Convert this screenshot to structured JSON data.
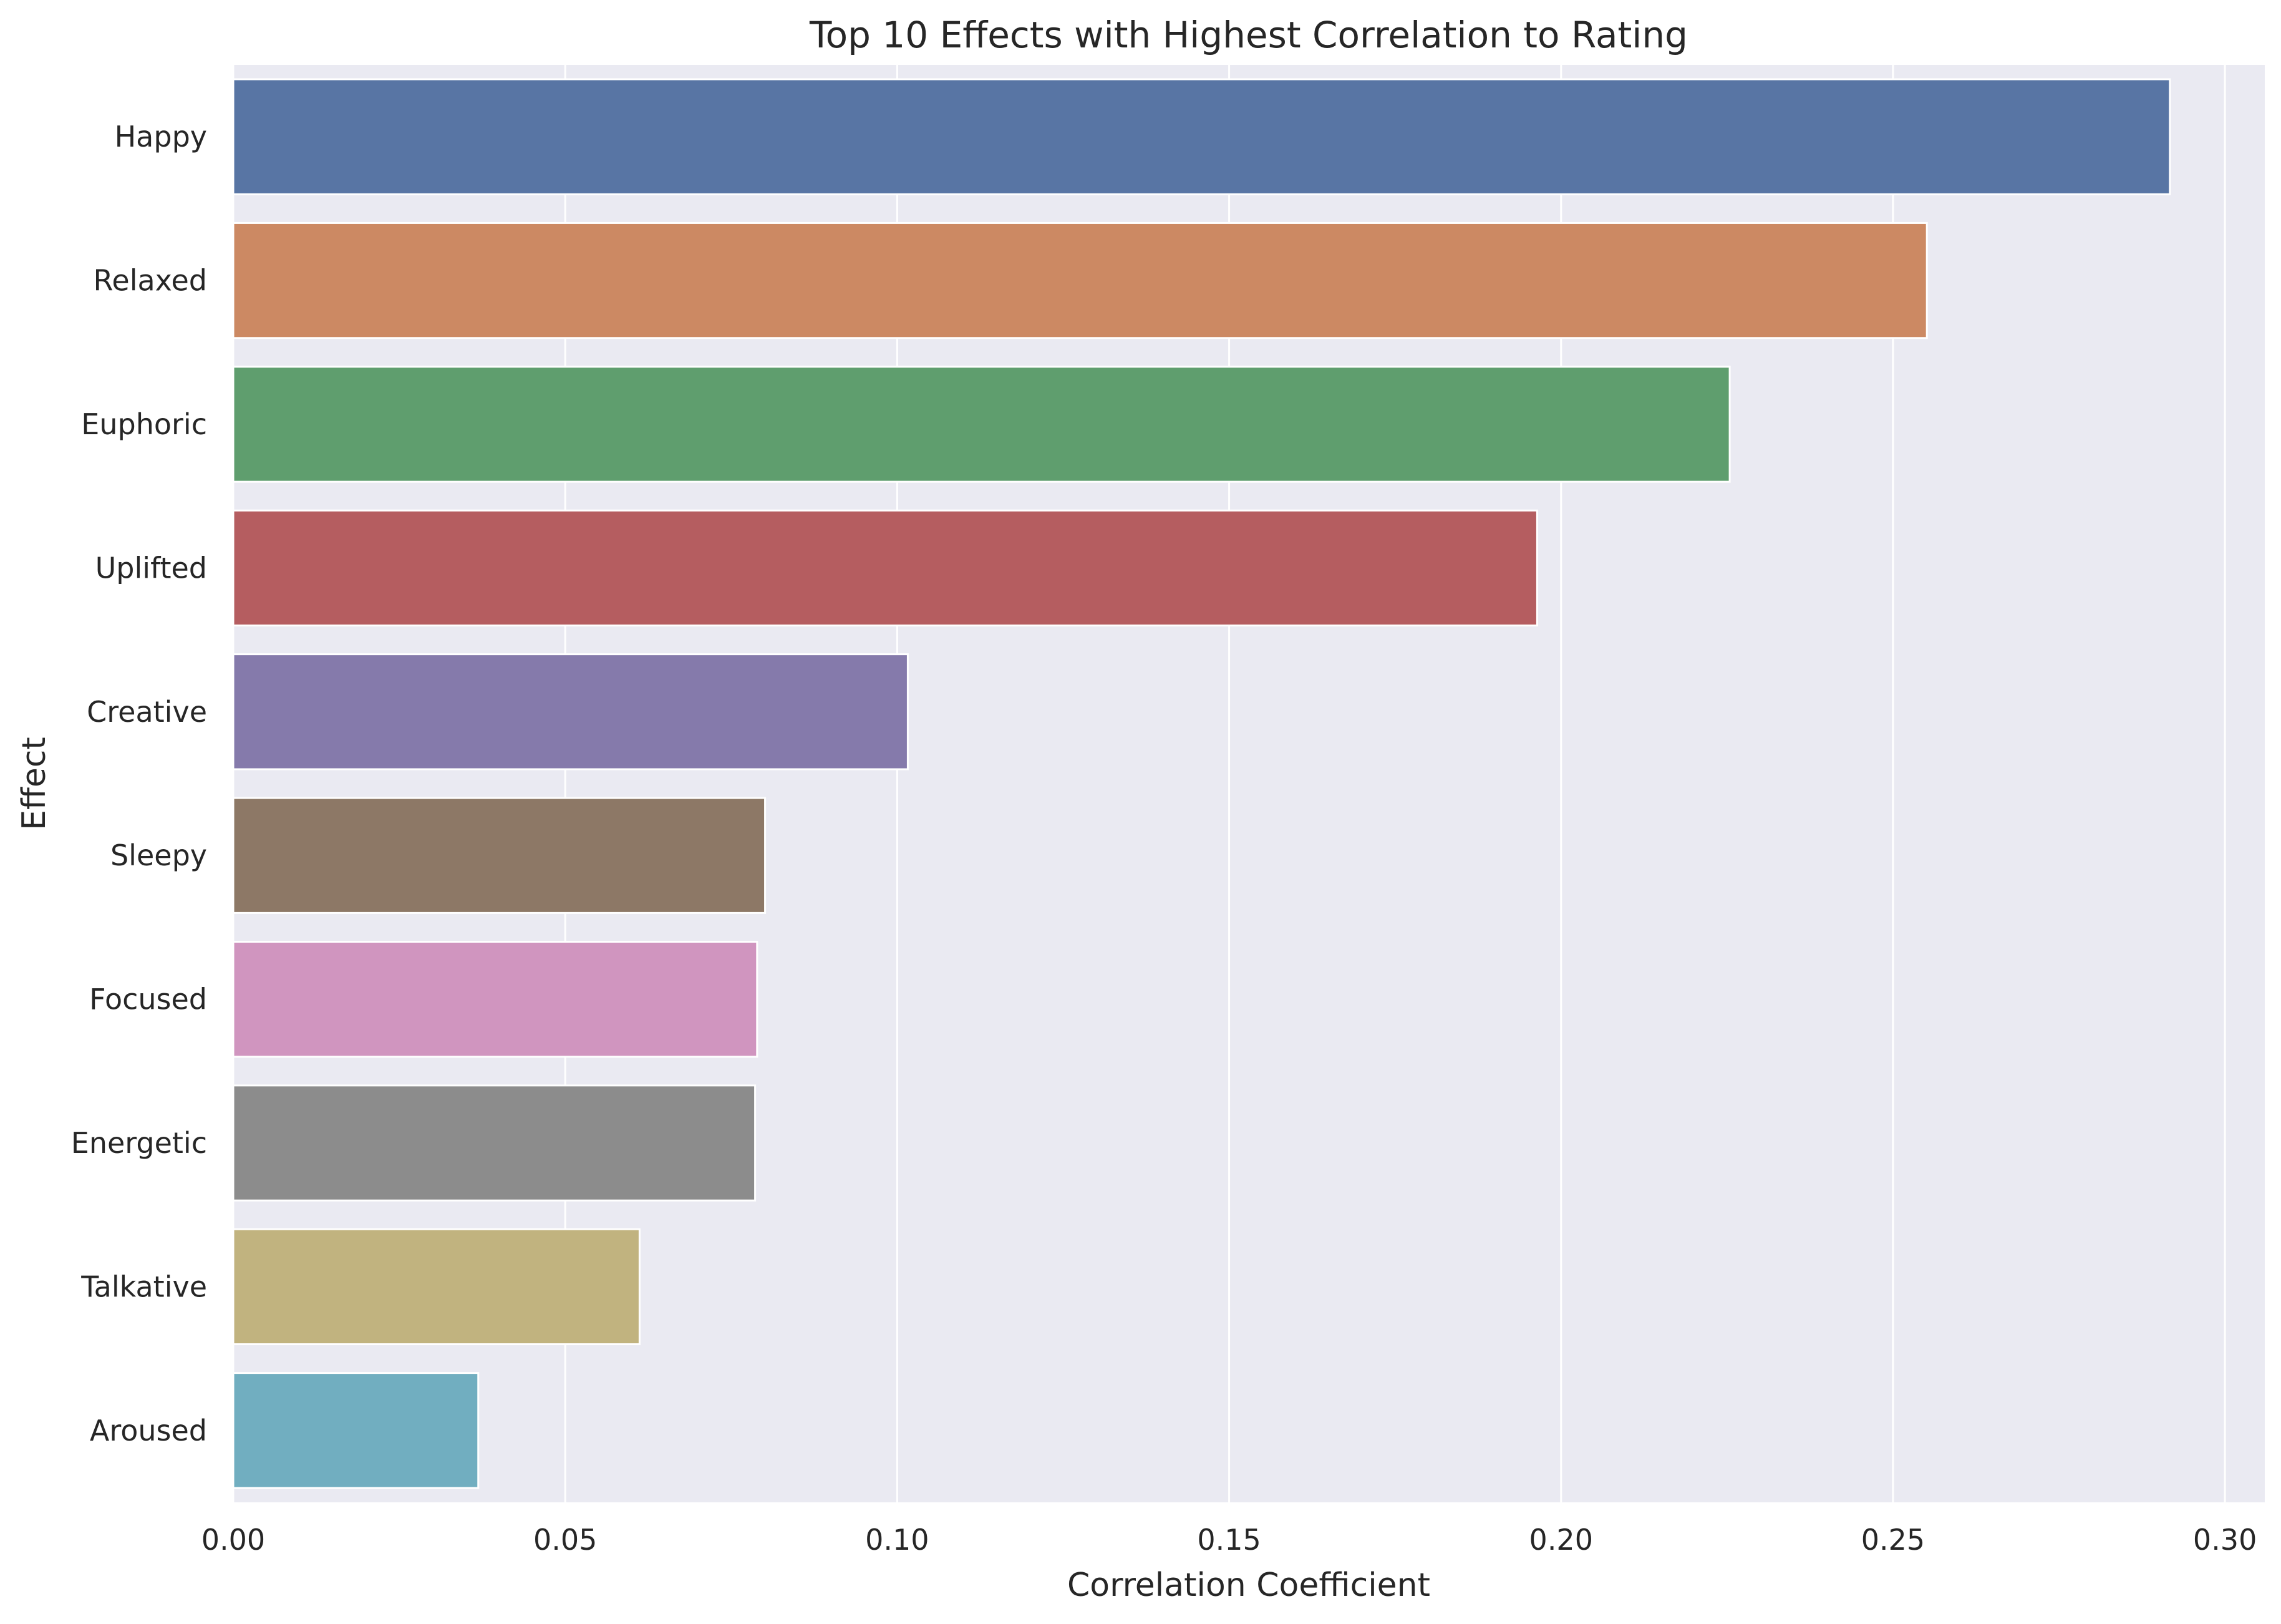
{
  "chart_data": {
    "type": "bar",
    "orientation": "horizontal",
    "title": "Top 10 Effects with Highest Correlation to Rating",
    "xlabel": "Correlation Coefficient",
    "ylabel": "Effect",
    "xlim": [
      0,
      0.306
    ],
    "xticks": [
      0.0,
      0.05,
      0.1,
      0.15,
      0.2,
      0.25,
      0.3
    ],
    "xtick_labels": [
      "0.00",
      "0.05",
      "0.10",
      "0.15",
      "0.20",
      "0.25",
      "0.30"
    ],
    "grid": true,
    "background": "#eaeaf2",
    "categories": [
      "Happy",
      "Relaxed",
      "Euphoric",
      "Uplifted",
      "Creative",
      "Sleepy",
      "Focused",
      "Energetic",
      "Talkative",
      "Aroused"
    ],
    "values": [
      0.2917,
      0.2551,
      0.2254,
      0.1964,
      0.1016,
      0.0801,
      0.0789,
      0.0786,
      0.0612,
      0.0369
    ],
    "colors": [
      "#5875a4",
      "#cc8963",
      "#5f9e6e",
      "#b55d60",
      "#857aab",
      "#8d7866",
      "#d095bf",
      "#8c8c8c",
      "#c1b37f",
      "#71aec0"
    ]
  }
}
